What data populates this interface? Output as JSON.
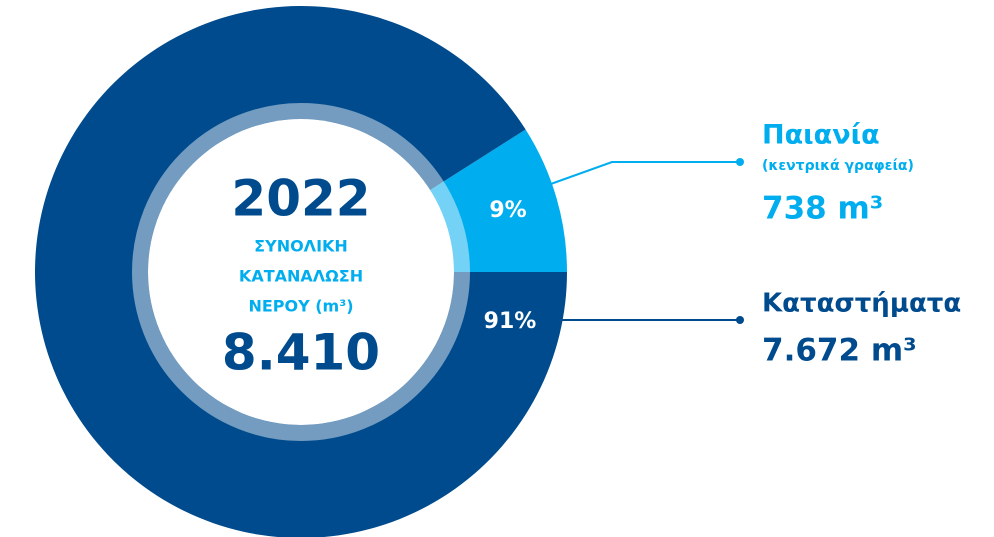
{
  "chart_data": {
    "type": "pie",
    "title": "2022",
    "center_lines": [
      "ΣΥΝΟΛΙΚΗ",
      "ΚΑΤΑΝΑΛΩΣΗ",
      "ΝΕΡΟΥ (m³)"
    ],
    "total": "8.410",
    "categories": [
      "Παιανία",
      "Καταστήματα"
    ],
    "note": "(κεντρικά γραφεία)",
    "amounts": [
      "738 m³",
      "7.672 m³"
    ],
    "values": [
      9,
      91
    ],
    "value_labels": [
      "9%",
      "91%"
    ],
    "colors": [
      "#00aeef",
      "#004b8d"
    ]
  }
}
